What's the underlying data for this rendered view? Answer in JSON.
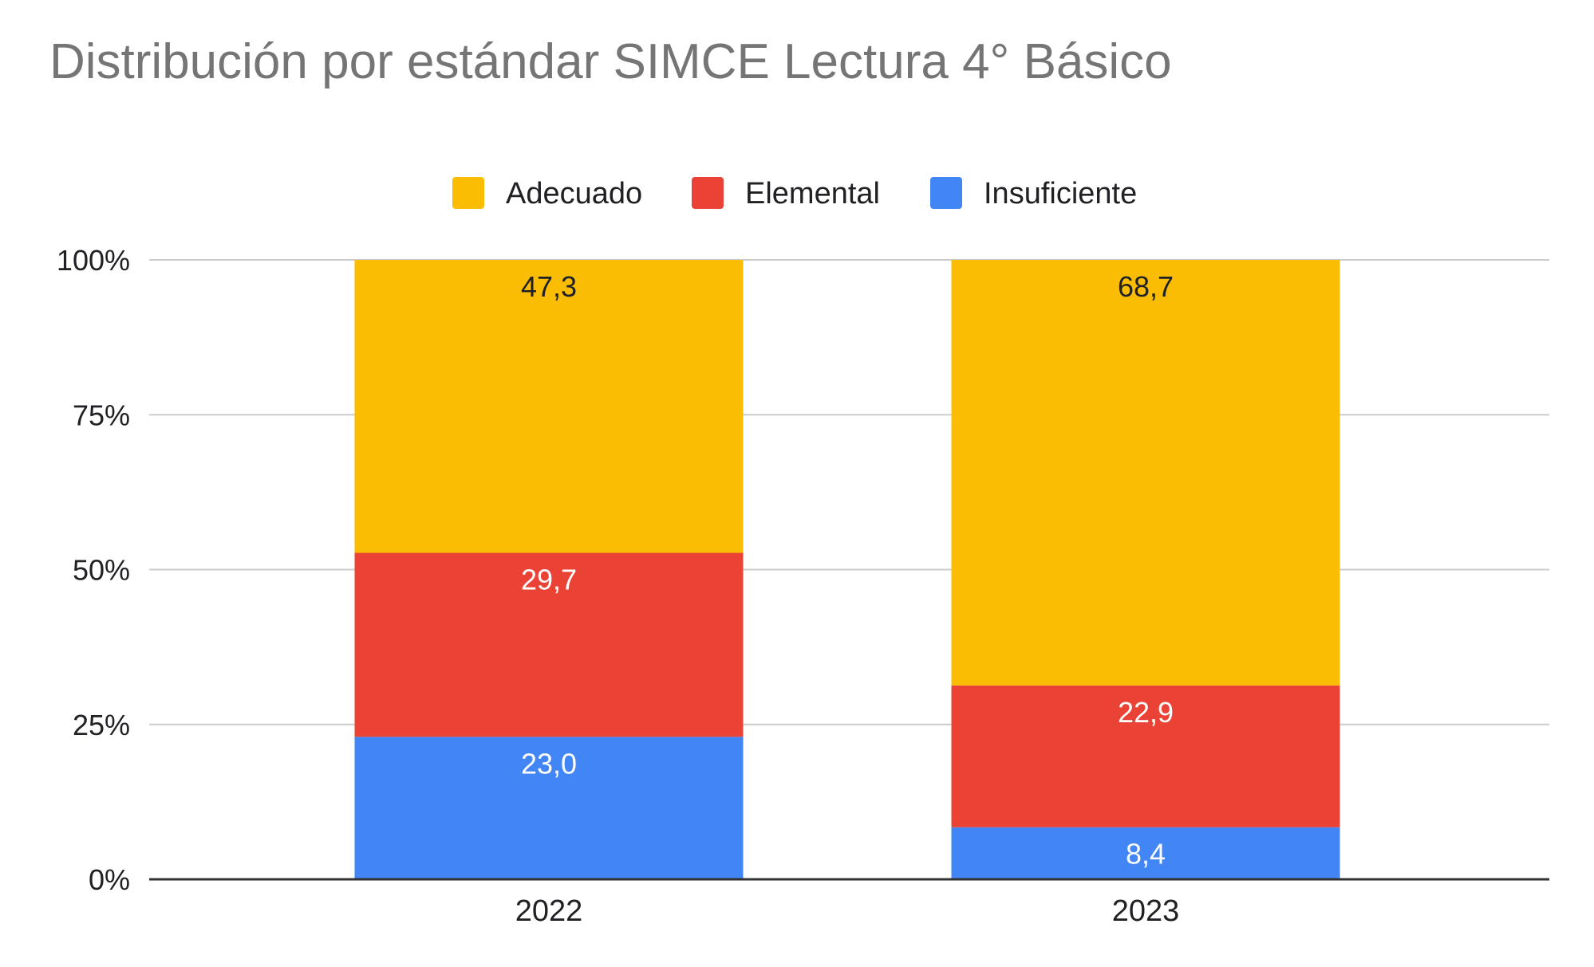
{
  "chart_data": {
    "type": "bar",
    "stacked": true,
    "normalized": true,
    "title": "Distribución por estándar SIMCE Lectura 4° Básico",
    "categories": [
      "2022",
      "2023"
    ],
    "series": [
      {
        "name": "Insuficiente",
        "color": "#4285F4",
        "values": [
          23.0,
          8.4
        ],
        "labels": [
          "23,0",
          "8,4"
        ],
        "label_color": "#ffffff"
      },
      {
        "name": "Elemental",
        "color": "#EA4335",
        "values": [
          29.7,
          22.9
        ],
        "labels": [
          "29,7",
          "22,9"
        ],
        "label_color": "#ffffff"
      },
      {
        "name": "Adecuado",
        "color": "#FBBC04",
        "values": [
          47.3,
          68.7
        ],
        "labels": [
          "47,3",
          "68,7"
        ],
        "label_color": "#202124"
      }
    ],
    "legend": {
      "position": "top",
      "order": [
        "Adecuado",
        "Elemental",
        "Insuficiente"
      ]
    },
    "yaxis": {
      "ticks": [
        0,
        25,
        50,
        75,
        100
      ],
      "tick_labels": [
        "0%",
        "25%",
        "50%",
        "75%",
        "100%"
      ],
      "ylim": [
        0,
        100
      ]
    },
    "grid": true,
    "xlabel": "",
    "ylabel": ""
  }
}
